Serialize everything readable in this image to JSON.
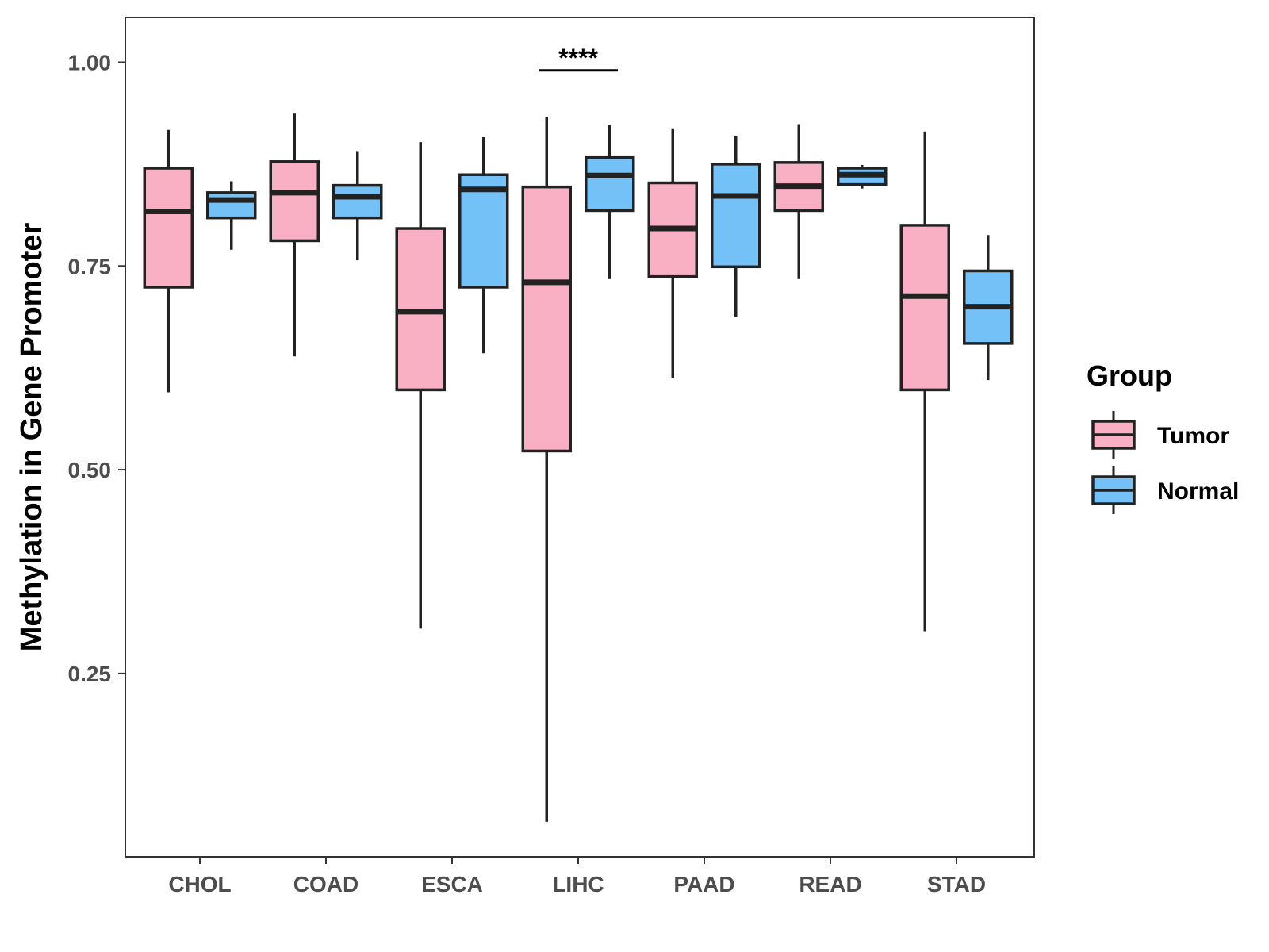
{
  "chart_data": {
    "type": "boxplot",
    "title": "",
    "xlabel": "",
    "ylabel": "Methylation in Gene Promoter",
    "ylim": [
      0.025,
      1.055
    ],
    "yticks": [
      0.25,
      0.5,
      0.75,
      1.0
    ],
    "ytick_labels": [
      "0.25",
      "0.50",
      "0.75",
      "1.00"
    ],
    "categories": [
      "CHOL",
      "COAD",
      "ESCA",
      "LIHC",
      "PAAD",
      "READ",
      "STAD"
    ],
    "grid": false,
    "legend": {
      "title": "Group",
      "position": "right",
      "entries": [
        "Tumor",
        "Normal"
      ]
    },
    "series": [
      {
        "name": "Tumor",
        "color": "#F9AFC4",
        "boxes": [
          {
            "whisker_low": 0.595,
            "q1": 0.724,
            "median": 0.817,
            "q3": 0.87,
            "whisker_high": 0.917
          },
          {
            "whisker_low": 0.639,
            "q1": 0.781,
            "median": 0.84,
            "q3": 0.878,
            "whisker_high": 0.937
          },
          {
            "whisker_low": 0.305,
            "q1": 0.598,
            "median": 0.694,
            "q3": 0.796,
            "whisker_high": 0.902
          },
          {
            "whisker_low": 0.068,
            "q1": 0.523,
            "median": 0.73,
            "q3": 0.847,
            "whisker_high": 0.933
          },
          {
            "whisker_low": 0.612,
            "q1": 0.737,
            "median": 0.796,
            "q3": 0.852,
            "whisker_high": 0.919
          },
          {
            "whisker_low": 0.734,
            "q1": 0.818,
            "median": 0.848,
            "q3": 0.877,
            "whisker_high": 0.924
          },
          {
            "whisker_low": 0.301,
            "q1": 0.598,
            "median": 0.713,
            "q3": 0.8,
            "whisker_high": 0.915
          }
        ]
      },
      {
        "name": "Normal",
        "color": "#74C1F7",
        "boxes": [
          {
            "whisker_low": 0.77,
            "q1": 0.809,
            "median": 0.831,
            "q3": 0.84,
            "whisker_high": 0.854
          },
          {
            "whisker_low": 0.757,
            "q1": 0.809,
            "median": 0.835,
            "q3": 0.849,
            "whisker_high": 0.891
          },
          {
            "whisker_low": 0.643,
            "q1": 0.724,
            "median": 0.844,
            "q3": 0.862,
            "whisker_high": 0.908
          },
          {
            "whisker_low": 0.734,
            "q1": 0.818,
            "median": 0.861,
            "q3": 0.883,
            "whisker_high": 0.923
          },
          {
            "whisker_low": 0.688,
            "q1": 0.749,
            "median": 0.836,
            "q3": 0.875,
            "whisker_high": 0.91
          },
          {
            "whisker_low": 0.845,
            "q1": 0.85,
            "median": 0.862,
            "q3": 0.87,
            "whisker_high": 0.874
          },
          {
            "whisker_low": 0.61,
            "q1": 0.655,
            "median": 0.7,
            "q3": 0.744,
            "whisker_high": 0.788
          }
        ]
      }
    ],
    "annotations": [
      {
        "category": "LIHC",
        "text": "****",
        "y": 0.99
      }
    ]
  }
}
